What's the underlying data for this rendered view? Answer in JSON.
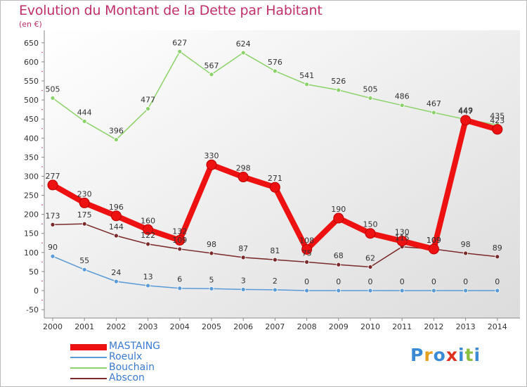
{
  "title": "Evolution du Montant de la Dette par Habitant",
  "unit_label": "(en €)",
  "logo": {
    "text": "Proxiti",
    "colors": [
      "#3a8ad6",
      "#e8a020",
      "#3a8ad6",
      "#e03020",
      "#3a8ad6",
      "#8cc040",
      "#3a8ad6"
    ]
  },
  "chart_data": {
    "type": "line",
    "title": "Evolution du Montant de la Dette par Habitant",
    "ylabel": "(en €)",
    "xlabel": "",
    "x": [
      "2000",
      "2001",
      "2002",
      "2003",
      "2004",
      "2005",
      "2006",
      "2007",
      "2008",
      "2009",
      "2010",
      "2011",
      "2012",
      "2013",
      "2014"
    ],
    "ylim": [
      -50,
      650
    ],
    "yticks": [
      "-50",
      "0",
      "50",
      "100",
      "150",
      "200",
      "250",
      "300",
      "350",
      "400",
      "450",
      "500",
      "550",
      "600",
      "650"
    ],
    "grid": false,
    "legend_position": "bottom-left",
    "series": [
      {
        "name": "Abscon",
        "color": "#7a2a2a",
        "width": 1.5,
        "marker": 3,
        "values": [
          173,
          175,
          144,
          122,
          109,
          98,
          87,
          81,
          75,
          68,
          62,
          115,
          109,
          98,
          89
        ],
        "labels": [
          "173",
          "175",
          "144",
          "122",
          "109",
          "98",
          "87",
          "81",
          "75",
          "68",
          "62",
          "115",
          "109",
          "98",
          "89"
        ]
      },
      {
        "name": "Roeulx",
        "color": "#5a9ad6",
        "width": 1.5,
        "marker": 3,
        "values": [
          90,
          55,
          24,
          13,
          6,
          5,
          3,
          2,
          0,
          0,
          0,
          0,
          0,
          0,
          0
        ],
        "labels": [
          "90",
          "55",
          "24",
          "13",
          "6",
          "5",
          "3",
          "2",
          "0",
          "0",
          "0",
          "0",
          "0",
          "0",
          "0"
        ]
      },
      {
        "name": "Bouchain",
        "color": "#8cd26a",
        "width": 1.5,
        "marker": 3,
        "values": [
          505,
          444,
          396,
          477,
          627,
          567,
          624,
          576,
          541,
          526,
          505,
          486,
          467,
          449,
          435
        ],
        "labels": [
          "505",
          "444",
          "396",
          "477",
          "627",
          "567",
          "624",
          "576",
          "541",
          "526",
          "505",
          "486",
          "467",
          "449",
          "435"
        ]
      },
      {
        "name": "MASTAING",
        "color": "#ee1111",
        "width": 8,
        "marker": 7,
        "values": [
          277,
          230,
          196,
          160,
          132,
          330,
          298,
          271,
          108,
          190,
          150,
          130,
          109,
          447,
          423
        ],
        "labels": [
          "277",
          "230",
          "196",
          "160",
          "132",
          "330",
          "298",
          "271",
          "108",
          "190",
          "150",
          "130",
          "109",
          "447",
          "423"
        ]
      }
    ],
    "legend_order": [
      "MASTAING",
      "Roeulx",
      "Bouchain",
      "Abscon"
    ]
  }
}
